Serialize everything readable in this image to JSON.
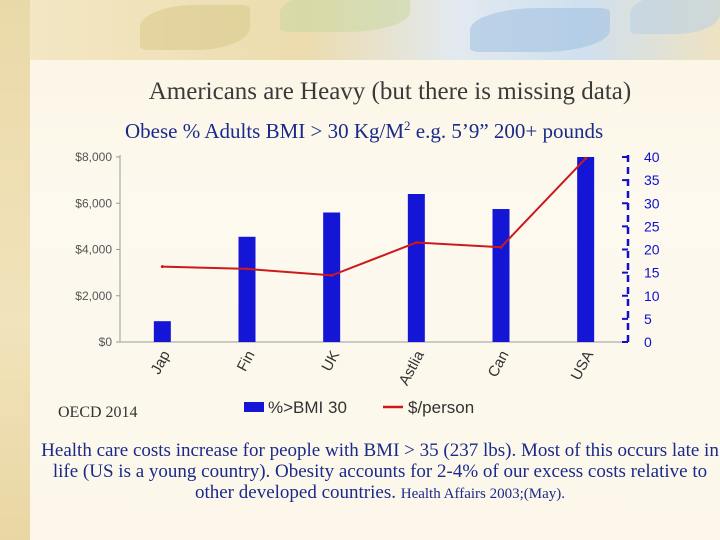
{
  "slide": {
    "title": "Americans are Heavy (but there is missing data)",
    "subtitle_main": "Obese % Adults BMI > 30 Kg/M",
    "subtitle_sup": "2",
    "subtitle_tail": " e.g. 5’9” 200+ pounds",
    "source": "OECD 2014",
    "note_main": "Health care costs increase for people with BMI > 35 (237 lbs). Most of this occurs late in life (US is a young country). Obesity accounts for 2-4% of our excess costs relative to other developed countries.",
    "note_cite": "Health Affairs 2003;(May)."
  },
  "chart_data": {
    "type": "bar+line",
    "categories": [
      "Jap",
      "Fin",
      "UK",
      "Astlia",
      "Can",
      "USA"
    ],
    "series": [
      {
        "name": "%>BMI 30",
        "type": "bar",
        "axis": "left",
        "color": "#1515d6",
        "values": [
          900,
          4550,
          5600,
          6400,
          5750,
          8000
        ]
      },
      {
        "name": "$/person",
        "type": "line",
        "axis": "right",
        "color": "#cc1a1a",
        "values": [
          16.3,
          15.8,
          14.4,
          21.5,
          20.5,
          39.7
        ]
      }
    ],
    "left_axis": {
      "min": 0,
      "max": 8000,
      "ticks": [
        0,
        2000,
        4000,
        6000,
        8000
      ],
      "labels": [
        "$0",
        "$2,000",
        "$4,000",
        "$6,000",
        "$8,000"
      ]
    },
    "right_axis": {
      "min": 0,
      "max": 40,
      "ticks": [
        0,
        5,
        10,
        15,
        20,
        25,
        30,
        35,
        40
      ],
      "labels": [
        "0",
        "5",
        "10",
        "15",
        "20",
        "25",
        "30",
        "35",
        "40"
      ]
    },
    "legend": {
      "position": "bottom",
      "labels": [
        "%>BMI 30",
        "$/person"
      ]
    },
    "colors": {
      "axis_right": "#1010cc",
      "axis_left": "#555555"
    }
  }
}
